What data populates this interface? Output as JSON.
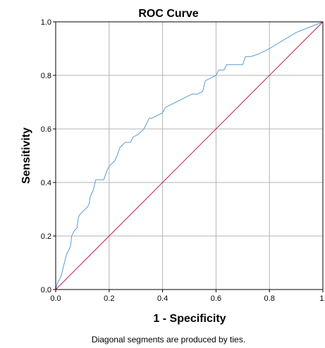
{
  "chart_data": {
    "type": "line",
    "title": "ROC Curve",
    "xlabel": "1 - Specificity",
    "ylabel": "Sensitivity",
    "footnote": "Diagonal segments are produced by ties.",
    "xlim": [
      0,
      1
    ],
    "ylim": [
      0,
      1
    ],
    "grid": true,
    "x_ticks": [
      0.0,
      0.2,
      0.4,
      0.6,
      0.8,
      1.0
    ],
    "y_ticks": [
      0.0,
      0.2,
      0.4,
      0.6,
      0.8,
      1.0
    ],
    "x_tick_labels": [
      "0.0",
      "0.2",
      "0.4",
      "0.6",
      "0.8",
      "1."
    ],
    "y_tick_labels": [
      "0.0",
      "0.2",
      "0.4",
      "0.6",
      "0.8",
      "1.0"
    ],
    "series": [
      {
        "color": "#5b9bd5",
        "points": [
          [
            0.0,
            0.0
          ],
          [
            0.005,
            0.02
          ],
          [
            0.01,
            0.03
          ],
          [
            0.015,
            0.04
          ],
          [
            0.02,
            0.05
          ],
          [
            0.025,
            0.07
          ],
          [
            0.03,
            0.09
          ],
          [
            0.035,
            0.11
          ],
          [
            0.04,
            0.13
          ],
          [
            0.05,
            0.15
          ],
          [
            0.055,
            0.16
          ],
          [
            0.06,
            0.2
          ],
          [
            0.065,
            0.21
          ],
          [
            0.07,
            0.22
          ],
          [
            0.08,
            0.23
          ],
          [
            0.085,
            0.27
          ],
          [
            0.09,
            0.28
          ],
          [
            0.1,
            0.29
          ],
          [
            0.11,
            0.3
          ],
          [
            0.12,
            0.31
          ],
          [
            0.125,
            0.32
          ],
          [
            0.13,
            0.35
          ],
          [
            0.14,
            0.37
          ],
          [
            0.145,
            0.39
          ],
          [
            0.15,
            0.41
          ],
          [
            0.18,
            0.41
          ],
          [
            0.19,
            0.44
          ],
          [
            0.2,
            0.46
          ],
          [
            0.22,
            0.48
          ],
          [
            0.23,
            0.5
          ],
          [
            0.24,
            0.53
          ],
          [
            0.26,
            0.55
          ],
          [
            0.28,
            0.55
          ],
          [
            0.29,
            0.57
          ],
          [
            0.31,
            0.58
          ],
          [
            0.32,
            0.59
          ],
          [
            0.33,
            0.6
          ],
          [
            0.34,
            0.62
          ],
          [
            0.35,
            0.64
          ],
          [
            0.36,
            0.64
          ],
          [
            0.38,
            0.65
          ],
          [
            0.4,
            0.66
          ],
          [
            0.41,
            0.68
          ],
          [
            0.43,
            0.69
          ],
          [
            0.45,
            0.7
          ],
          [
            0.47,
            0.71
          ],
          [
            0.49,
            0.72
          ],
          [
            0.51,
            0.73
          ],
          [
            0.53,
            0.73
          ],
          [
            0.55,
            0.74
          ],
          [
            0.56,
            0.78
          ],
          [
            0.58,
            0.79
          ],
          [
            0.6,
            0.8
          ],
          [
            0.61,
            0.82
          ],
          [
            0.63,
            0.82
          ],
          [
            0.64,
            0.84
          ],
          [
            0.7,
            0.84
          ],
          [
            0.71,
            0.87
          ],
          [
            0.73,
            0.87
          ],
          [
            0.76,
            0.88
          ],
          [
            0.8,
            0.9
          ],
          [
            0.85,
            0.93
          ],
          [
            0.9,
            0.96
          ],
          [
            0.95,
            0.98
          ],
          [
            1.0,
            1.0
          ]
        ]
      },
      {
        "color": "#c2185b",
        "points": [
          [
            0.0,
            0.0
          ],
          [
            1.0,
            1.0
          ]
        ]
      }
    ]
  }
}
